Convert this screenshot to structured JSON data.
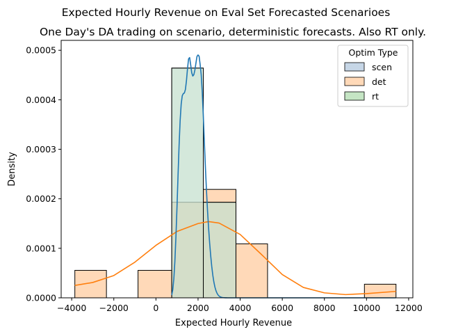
{
  "chart_data": {
    "type": "bar",
    "title": "Expected Hourly Revenue on Eval Set Forecasted Scenarioes",
    "subtitle": "One Day's DA trading on scenario, deterministic forecasts.  Also RT only.",
    "xlabel": "Expected Hourly Revenue",
    "ylabel": "Density",
    "xlim": [
      -4500,
      12200
    ],
    "ylim": [
      0,
      0.00052
    ],
    "x_ticks": [
      -4000,
      -2000,
      0,
      2000,
      4000,
      6000,
      8000,
      10000,
      12000
    ],
    "x_tick_labels": [
      "−4000",
      "−2000",
      "0",
      "2000",
      "4000",
      "6000",
      "8000",
      "10000",
      "12000"
    ],
    "y_ticks": [
      0,
      0.0001,
      0.0002,
      0.0003,
      0.0004,
      0.0005
    ],
    "y_tick_labels": [
      "0.0000",
      "0.0001",
      "0.0002",
      "0.0003",
      "0.0004",
      "0.0005"
    ],
    "legend": {
      "title": "Optim Type",
      "placement": "top-right",
      "entries": [
        {
          "label": "scen",
          "color": "#c6d6e6"
        },
        {
          "label": "det",
          "color": "#ffd9b8"
        },
        {
          "label": "rt",
          "color": "#c5e5c4"
        }
      ]
    },
    "series": [
      {
        "name": "det",
        "fill": "#ffd9b8",
        "line_color": "#ff7f0e",
        "bins": [
          {
            "x0": -3850,
            "x1": -2350,
            "density": 5.55e-05
          },
          {
            "x0": -2350,
            "x1": -850,
            "density": 0
          },
          {
            "x0": -850,
            "x1": 750,
            "density": 5.55e-05
          },
          {
            "x0": 750,
            "x1": 2250,
            "density": 0.000193
          },
          {
            "x0": 2250,
            "x1": 3800,
            "density": 0.000219
          },
          {
            "x0": 3800,
            "x1": 5300,
            "density": 0.000109
          },
          {
            "x0": 5300,
            "x1": 6850,
            "density": 0
          },
          {
            "x0": 6850,
            "x1": 8350,
            "density": 0
          },
          {
            "x0": 8350,
            "x1": 9900,
            "density": 0
          },
          {
            "x0": 9900,
            "x1": 11400,
            "density": 2.75e-05
          }
        ],
        "kde": {
          "x": [
            -3850,
            -3000,
            -2000,
            -1000,
            0,
            1000,
            2000,
            2500,
            3000,
            4000,
            5000,
            6000,
            7000,
            8000,
            9000,
            10000,
            11400
          ],
          "y": [
            2.5e-05,
            3.1e-05,
            4.5e-05,
            7.2e-05,
            0.000106,
            0.000134,
            0.00015,
            0.000154,
            0.000151,
            0.000128,
            8.8e-05,
            4.7e-05,
            2.1e-05,
            1e-05,
            6.5e-06,
            8.5e-06,
            1.3e-05
          ]
        }
      },
      {
        "name": "scen",
        "fill": "#c6d6e6",
        "line_color": "#1f77b4",
        "bins": [
          {
            "x0": 750,
            "x1": 2250,
            "density": 0.000464
          },
          {
            "x0": 2250,
            "x1": 3800,
            "density": 0.000193
          }
        ],
        "kde": {
          "x": [
            750,
            800,
            850,
            900,
            950,
            1000,
            1050,
            1100,
            1150,
            1200,
            1250,
            1300,
            1350,
            1400,
            1450,
            1500,
            1550,
            1600,
            1650,
            1700,
            1750,
            1800,
            1850,
            1900,
            1950,
            2000,
            2050,
            2100,
            2150,
            2200,
            2250,
            2300,
            2350,
            2400,
            2450,
            2500,
            2550,
            2600,
            2650,
            2700,
            2750,
            2800,
            2850,
            2900,
            2950,
            3000,
            3050,
            3100,
            3150,
            3200,
            3250,
            3300,
            3350,
            3400,
            3500,
            3600,
            3800,
            4000,
            5000,
            7000,
            9000,
            11400
          ],
          "y": [
            5.5e-06,
            1.64e-05,
            3.84e-05,
            7.4e-05,
            0.0001236,
            0.0001831,
            0.0002473,
            0.0003084,
            0.0003583,
            0.0003917,
            0.0004082,
            0.0004125,
            0.0004136,
            0.0004208,
            0.0004388,
            0.0004632,
            0.0004826,
            0.0004853,
            0.0004705,
            0.0004545,
            0.0004479,
            0.0004506,
            0.0004601,
            0.0004742,
            0.0004876,
            0.0004905,
            0.000488,
            0.000471,
            0.0004505,
            0.0004146,
            0.0003669,
            0.000314,
            0.0002628,
            0.0002164,
            0.000176,
            0.0001412,
            0.0001111,
            8.53e-05,
            6.36e-05,
            4.59e-05,
            3.22e-05,
            2.19e-05,
            1.45e-05,
            9.3e-06,
            5.8e-06,
            3.5e-06,
            2.1e-06,
            1.2e-06,
            7e-07,
            4e-07,
            2e-07,
            1e-07,
            5e-08,
            2e-08,
            0,
            0,
            0,
            0,
            0,
            0,
            0,
            0
          ]
        }
      },
      {
        "name": "rt",
        "fill": "#c5e5c4",
        "line_color": "#2ca02c",
        "bins": [
          {
            "x0": 750,
            "x1": 2250,
            "density": 0.000464
          },
          {
            "x0": 2250,
            "x1": 3800,
            "density": 0.000193
          }
        ],
        "kde": null
      }
    ]
  }
}
